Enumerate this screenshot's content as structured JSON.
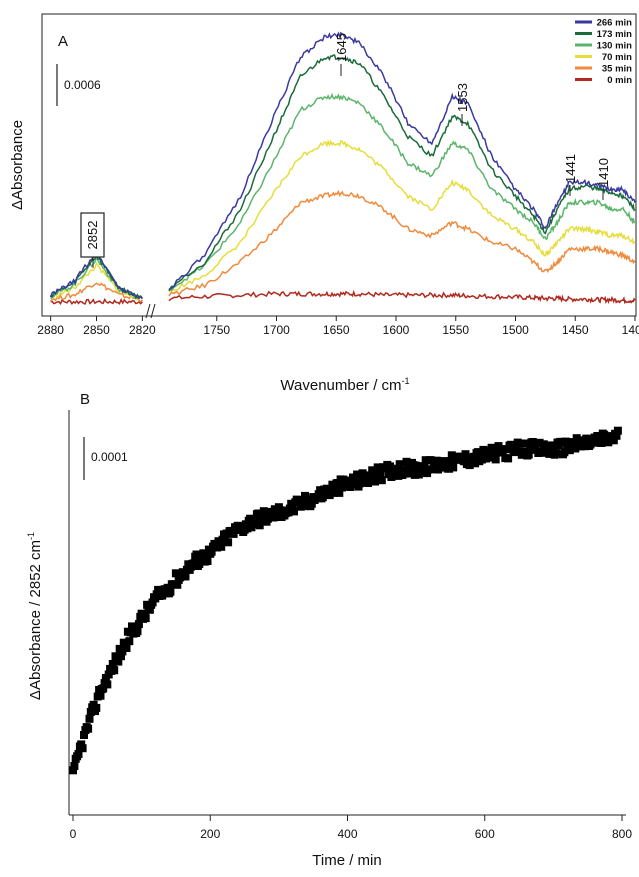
{
  "chart_data": [
    {
      "panel": "A",
      "type": "line",
      "ylabel": "ΔAbsorbance",
      "xlabel": "Wavenumber / cm",
      "xlabel_sup": "-1",
      "scale_bar": "0.0006",
      "x_axis_break": true,
      "x_ticks_left": [
        2880,
        2850,
        2820
      ],
      "x_ticks_right": [
        1750,
        1700,
        1650,
        1600,
        1550,
        1500,
        1450,
        1400
      ],
      "xlim_left": [
        2885,
        2815
      ],
      "xlim_right": [
        1800,
        1400
      ],
      "ylim": [
        -0.0002,
        0.0042
      ],
      "legend_placement": "top-right",
      "peak_labels": [
        "1645",
        "1553",
        "1441",
        "1410"
      ],
      "boxed_peak_label": "2852",
      "anchors": [
        2880,
        2865,
        2850,
        2835,
        2820,
        1790,
        1760,
        1730,
        1700,
        1680,
        1660,
        1645,
        1630,
        1610,
        1590,
        1570,
        1553,
        1540,
        1520,
        1500,
        1485,
        1475,
        1465,
        1455,
        1441,
        1430,
        1420,
        1410,
        1400
      ],
      "series": [
        {
          "name": "266 min",
          "color": "#3a3a9e",
          "values": [
            0.0001,
            0.0003,
            0.00075,
            0.0002,
            5e-05,
            0.0002,
            0.0007,
            0.0016,
            0.0029,
            0.0037,
            0.004,
            0.00405,
            0.0039,
            0.0034,
            0.0027,
            0.0024,
            0.0031,
            0.003,
            0.0022,
            0.0017,
            0.0014,
            0.0011,
            0.0015,
            0.0018,
            0.0018,
            0.00175,
            0.0017,
            0.0017,
            0.0015
          ]
        },
        {
          "name": "173 min",
          "color": "#1b6b3a",
          "values": [
            0.0001,
            0.00028,
            0.0007,
            0.0002,
            5e-05,
            0.0002,
            0.0006,
            0.0014,
            0.0026,
            0.0034,
            0.0037,
            0.0037,
            0.0036,
            0.0031,
            0.0025,
            0.0022,
            0.0028,
            0.0027,
            0.002,
            0.0016,
            0.0013,
            0.00105,
            0.0014,
            0.0017,
            0.00175,
            0.0017,
            0.00165,
            0.0016,
            0.0014
          ]
        },
        {
          "name": "130 min",
          "color": "#5bb56a",
          "values": [
            8e-05,
            0.00025,
            0.00065,
            0.00018,
            5e-05,
            0.00018,
            0.00055,
            0.0012,
            0.0022,
            0.0029,
            0.0031,
            0.0031,
            0.003,
            0.0026,
            0.0021,
            0.0019,
            0.0024,
            0.0023,
            0.0017,
            0.0014,
            0.0012,
            0.00095,
            0.0012,
            0.0015,
            0.0015,
            0.0015,
            0.0014,
            0.0014,
            0.0012
          ]
        },
        {
          "name": "70 min",
          "color": "#e6dd3a",
          "values": [
            6e-05,
            0.0002,
            0.00055,
            0.00015,
            4e-05,
            0.00015,
            0.0004,
            0.0009,
            0.0017,
            0.0022,
            0.0024,
            0.0024,
            0.0023,
            0.002,
            0.0016,
            0.0014,
            0.0018,
            0.0017,
            0.0013,
            0.0011,
            0.0009,
            0.0007,
            0.0009,
            0.0011,
            0.0011,
            0.00105,
            0.001,
            0.001,
            0.0009
          ]
        },
        {
          "name": "35 min",
          "color": "#f08a3c",
          "values": [
            4e-05,
            0.0001,
            0.0003,
            0.0001,
            3e-05,
            0.0001,
            0.00025,
            0.0006,
            0.0011,
            0.0015,
            0.0016,
            0.00165,
            0.0016,
            0.0014,
            0.0011,
            0.001,
            0.0012,
            0.0011,
            0.0009,
            0.0008,
            0.0006,
            0.00045,
            0.0006,
            0.0008,
            0.0008,
            0.0008,
            0.00075,
            0.0007,
            0.0006
          ]
        },
        {
          "name": "0 min",
          "color": "#b02a1e",
          "values": [
            0,
            0,
            0,
            0,
            0,
            5e-05,
            8e-05,
            0.0001,
            0.00012,
            0.00012,
            0.00012,
            0.00012,
            0.00012,
            0.0001,
            0.0001,
            0.0001,
            0.0001,
            9e-05,
            8e-05,
            7e-05,
            6e-05,
            5e-05,
            5e-05,
            4e-05,
            4e-05,
            3e-05,
            3e-05,
            2e-05,
            2e-05
          ]
        }
      ]
    },
    {
      "panel": "B",
      "type": "scatter",
      "ylabel": "ΔAbsorbance / 2852 cm",
      "ylabel_sup": "-1",
      "xlabel": "Time / min",
      "scale_bar": "0.0001",
      "x_ticks": [
        0,
        200,
        400,
        600,
        800
      ],
      "xlim": [
        -5,
        805
      ],
      "ylim": [
        0,
        0.00062
      ],
      "marker_color": "#000000",
      "x": [
        0,
        10,
        20,
        30,
        40,
        50,
        60,
        80,
        100,
        120,
        140,
        160,
        180,
        200,
        230,
        260,
        290,
        320,
        350,
        380,
        410,
        440,
        470,
        500,
        550,
        600,
        650,
        700,
        750,
        795
      ],
      "y": [
        6e-05,
        0.0001,
        0.00013,
        0.00016,
        0.00019,
        0.00021,
        0.00023,
        0.00027,
        0.0003,
        0.00033,
        0.00035,
        0.00037,
        0.00039,
        0.0004,
        0.00043,
        0.00045,
        0.00046,
        0.00047,
        0.000485,
        0.0005,
        0.00051,
        0.00052,
        0.00053,
        0.00053,
        0.00054,
        0.00055,
        0.00056,
        0.00056,
        0.00057,
        0.00058
      ]
    }
  ]
}
